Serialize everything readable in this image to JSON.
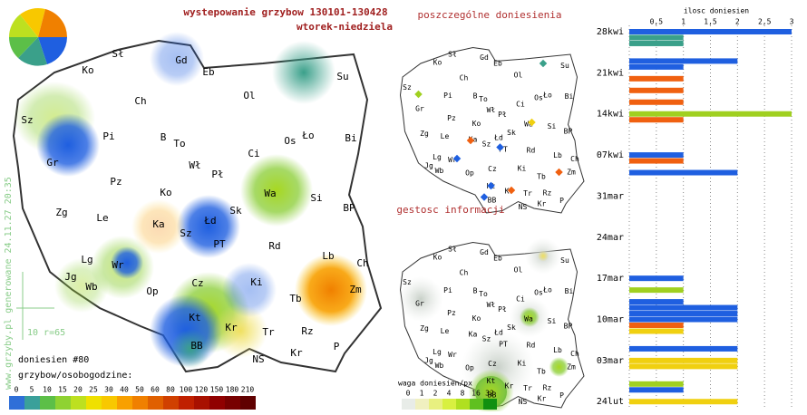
{
  "title": "wystepowanie grzybow 130101-130428",
  "subtitle": "wtorek-niedziela",
  "vertical_note": "www.grzyby.pl generowane 24.11.27 20:35",
  "scale_note": "10 r=65",
  "reports": "doniesien #80",
  "panel_titles": [
    "poszczególne doniesienia",
    "gestosc informacji"
  ],
  "map_labels": [
    "Sł",
    "Gd",
    "Eb",
    "Su",
    "Ko",
    "Ol",
    "Ch",
    "Sz",
    "Pi",
    "B",
    "To",
    "Bi",
    "Os",
    "Ło",
    "Gr",
    "Wł",
    "Ci",
    "Pł",
    "Pz",
    "Ko",
    "Wa",
    "Si",
    "Zg",
    "Le",
    "Ka",
    "Łd",
    "Sk",
    "BP",
    "Sz",
    "PT",
    "Rd",
    "Lg",
    "Wr",
    "Lb",
    "Ch",
    "Jg",
    "Wb",
    "Op",
    "Cz",
    "Ki",
    "Tb",
    "Zm",
    "Kt",
    "Kr",
    "Rz",
    "Tr",
    "BB",
    "NS",
    "Kr",
    "P"
  ],
  "legend_main": {
    "title": "grzybow/osobogodzine:",
    "ticks": [
      0,
      5,
      10,
      15,
      20,
      25,
      30,
      40,
      50,
      60,
      80,
      100,
      120,
      150,
      180,
      210
    ],
    "colors": [
      "#2f6fd8",
      "#3aa09a",
      "#5cbf48",
      "#8fd232",
      "#bde020",
      "#efe000",
      "#f8c800",
      "#f8a000",
      "#f08000",
      "#e06000",
      "#d04000",
      "#c02000",
      "#a81000",
      "#900000",
      "#780000",
      "#600000"
    ]
  },
  "legend_weight": {
    "title": "waga doniesien/px",
    "ticks": [
      0,
      1,
      2,
      4,
      8,
      16,
      32
    ],
    "colors": [
      "#e8ece8",
      "#f0f0c0",
      "#e8f080",
      "#d8f040",
      "#b0e020",
      "#60c020",
      "#109010"
    ]
  },
  "chart_data": {
    "type": "bar",
    "orientation": "horizontal",
    "x_label": "ilosc doniesien",
    "categories": [
      "28kwi",
      null,
      null,
      null,
      null,
      null,
      null,
      "21kwi",
      null,
      null,
      null,
      null,
      null,
      null,
      "14kwi",
      null,
      null,
      null,
      null,
      null,
      null,
      "07kwi",
      null,
      null,
      null,
      null,
      null,
      null,
      "31mar",
      null,
      null,
      null,
      null,
      null,
      null,
      "24mar",
      null,
      null,
      null,
      null,
      null,
      null,
      "17mar",
      null,
      null,
      null,
      null,
      null,
      null,
      "10mar",
      null,
      null,
      null,
      null,
      null,
      null,
      "03mar",
      null,
      null,
      null,
      null,
      null,
      null,
      "24lut"
    ],
    "values": [
      3,
      1,
      1,
      null,
      null,
      2,
      1,
      null,
      1,
      null,
      1,
      null,
      1,
      null,
      3,
      1,
      null,
      null,
      null,
      null,
      null,
      1,
      1,
      null,
      2,
      null,
      null,
      null,
      null,
      null,
      null,
      null,
      null,
      null,
      null,
      null,
      null,
      null,
      null,
      null,
      null,
      null,
      1,
      null,
      1,
      null,
      1,
      2,
      2,
      2,
      1,
      1,
      null,
      null,
      2,
      null,
      2,
      2,
      null,
      null,
      1,
      1,
      null,
      2
    ],
    "colors": [
      "#1f5fe0",
      "#3aa08a",
      "#3aa08a",
      null,
      null,
      "#1f5fe0",
      "#1f5fe0",
      null,
      "#f06010",
      null,
      "#f06010",
      null,
      "#f06010",
      null,
      "#a0d020",
      "#f06010",
      null,
      null,
      null,
      null,
      null,
      "#1f5fe0",
      "#f06010",
      null,
      "#1f5fe0",
      null,
      null,
      null,
      null,
      null,
      null,
      null,
      null,
      null,
      null,
      null,
      null,
      null,
      null,
      null,
      null,
      null,
      "#1f5fe0",
      null,
      "#a0d020",
      null,
      "#1f5fe0",
      "#1f5fe0",
      "#1f5fe0",
      "#1f5fe0",
      "#f06010",
      "#f0d010",
      null,
      null,
      "#1f5fe0",
      null,
      "#f0d010",
      "#f0d010",
      null,
      null,
      "#a0d020",
      "#1f5fe0",
      null,
      "#f0d010"
    ],
    "xlim": [
      0,
      3
    ],
    "xticks": [
      {
        "value": 0.5,
        "label": "0,5"
      },
      1,
      {
        "value": 1.5,
        "label": "1,5"
      },
      2,
      {
        "value": 2.5,
        "label": "2,5"
      },
      3
    ],
    "grid": true
  }
}
